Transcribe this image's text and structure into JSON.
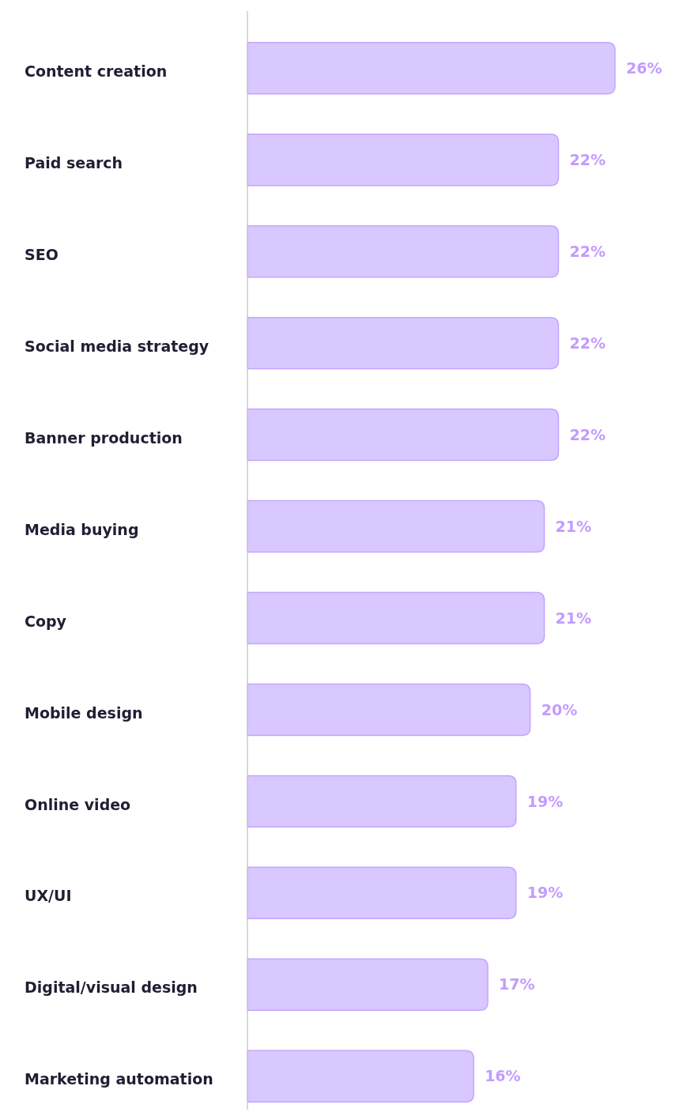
{
  "chart_data": {
    "type": "bar",
    "orientation": "horizontal",
    "categories": [
      "Content creation",
      "Paid search",
      "SEO",
      "Social media strategy",
      "Banner production",
      "Media buying",
      "Copy",
      "Mobile design",
      "Online video",
      "UX/UI",
      "Digital/visual design",
      "Marketing automation"
    ],
    "values": [
      26,
      22,
      22,
      22,
      22,
      21,
      21,
      20,
      19,
      19,
      17,
      16
    ],
    "color": "#d9c7ff",
    "data_labels": true,
    "value_labels": [
      "26%",
      "22%",
      "22%",
      "22%",
      "22%",
      "21%",
      "21%",
      "20%",
      "19%",
      "19%",
      "17%",
      "16%"
    ]
  }
}
